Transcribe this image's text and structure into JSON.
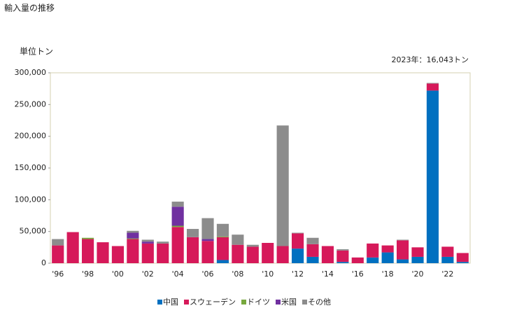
{
  "chart_data": {
    "type": "stacked_bar",
    "title": "輸入量の推移",
    "y_label": "単位トン",
    "annotation": "2023年：16,043トン",
    "categories": [
      "'96",
      null,
      "'98",
      null,
      "'00",
      null,
      "'02",
      null,
      "'04",
      null,
      "'06",
      null,
      "'08",
      null,
      "'10",
      null,
      "'12",
      null,
      "'14",
      null,
      "'16",
      null,
      "'18",
      null,
      "'20",
      null,
      "'22",
      null
    ],
    "series": [
      {
        "name": "中国",
        "color": "#0070c0",
        "values": [
          0,
          0,
          0,
          0,
          0,
          0,
          0,
          0,
          0,
          0,
          0,
          5000,
          0,
          0,
          0,
          0,
          23000,
          10000,
          0,
          2000,
          0,
          9000,
          17000,
          6000,
          10000,
          272000,
          10000,
          2000
        ]
      },
      {
        "name": "スウェーデン",
        "color": "#d6195a",
        "values": [
          28000,
          49000,
          38000,
          33000,
          27000,
          38000,
          31000,
          31000,
          57000,
          41000,
          35000,
          36000,
          29000,
          26000,
          32000,
          27000,
          24000,
          20000,
          27000,
          18000,
          9000,
          22000,
          11000,
          30000,
          15000,
          11000,
          16000,
          14043
        ]
      },
      {
        "name": "ドイツ",
        "color": "#77a83d",
        "values": [
          0,
          0,
          2000,
          0,
          0,
          1000,
          0,
          0,
          2000,
          0,
          0,
          1000,
          0,
          0,
          0,
          0,
          0,
          0,
          0,
          0,
          0,
          0,
          0,
          0,
          0,
          0,
          0,
          0
        ]
      },
      {
        "name": "米国",
        "color": "#7030a0",
        "values": [
          0,
          0,
          0,
          0,
          0,
          9000,
          3000,
          0,
          30000,
          0,
          3000,
          0,
          0,
          0,
          0,
          0,
          0,
          0,
          0,
          0,
          0,
          0,
          0,
          0,
          0,
          0,
          0,
          0
        ]
      },
      {
        "name": "その他",
        "color": "#8c8c8c",
        "values": [
          10000,
          0,
          0,
          0,
          0,
          3000,
          3000,
          3000,
          8000,
          13000,
          33000,
          20000,
          16000,
          3000,
          0,
          190000,
          1000,
          10000,
          0,
          2000,
          0,
          0,
          0,
          1000,
          0,
          1000,
          0,
          0
        ]
      }
    ],
    "ylim": [
      0,
      300000
    ],
    "yticks": [
      0,
      {
        "value": 50000,
        "label": "50,000"
      },
      {
        "value": 100000,
        "label": "100,000"
      },
      {
        "value": 150000,
        "label": "150,000"
      },
      {
        "value": 200000,
        "label": "200,000"
      },
      {
        "value": 250000,
        "label": "250,000"
      },
      {
        "value": 300000,
        "label": "300,000"
      }
    ],
    "legend": "bottom"
  }
}
